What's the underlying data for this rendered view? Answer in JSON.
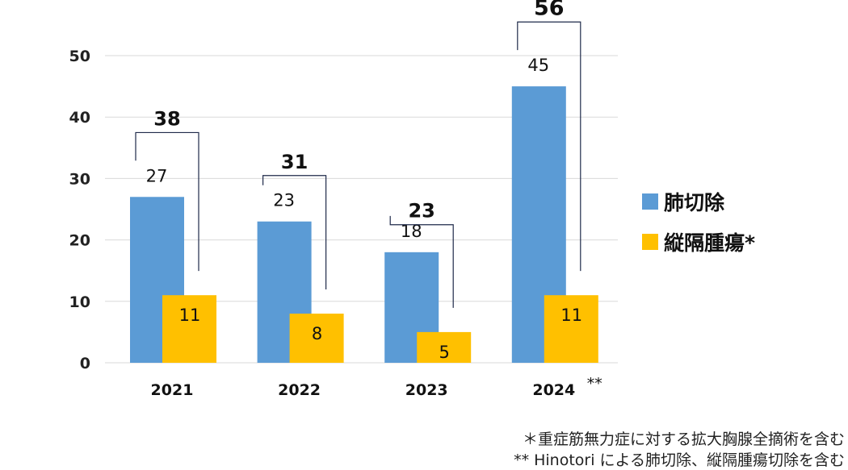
{
  "chart_data": {
    "type": "bar",
    "categories": [
      "2021",
      "2022",
      "2023",
      "2024"
    ],
    "category_suffix": [
      "",
      "",
      "",
      "**"
    ],
    "series": [
      {
        "name": "肺切除",
        "color": "#5B9BD5",
        "values": [
          27,
          23,
          18,
          45
        ]
      },
      {
        "name": "縦隔腫瘍*",
        "color": "#FFC000",
        "values": [
          11,
          8,
          5,
          11
        ]
      }
    ],
    "totals": [
      38,
      31,
      23,
      56
    ],
    "ylim": [
      0,
      50
    ],
    "yticks": [
      0,
      10,
      20,
      30,
      40,
      50
    ],
    "grid": true,
    "legend": "right"
  },
  "notes": [
    "＊重症筋無力症に対する拡大胸腺全摘術を含む",
    "** Hinotori による肺切除、縦隔腫瘍切除を含む"
  ]
}
